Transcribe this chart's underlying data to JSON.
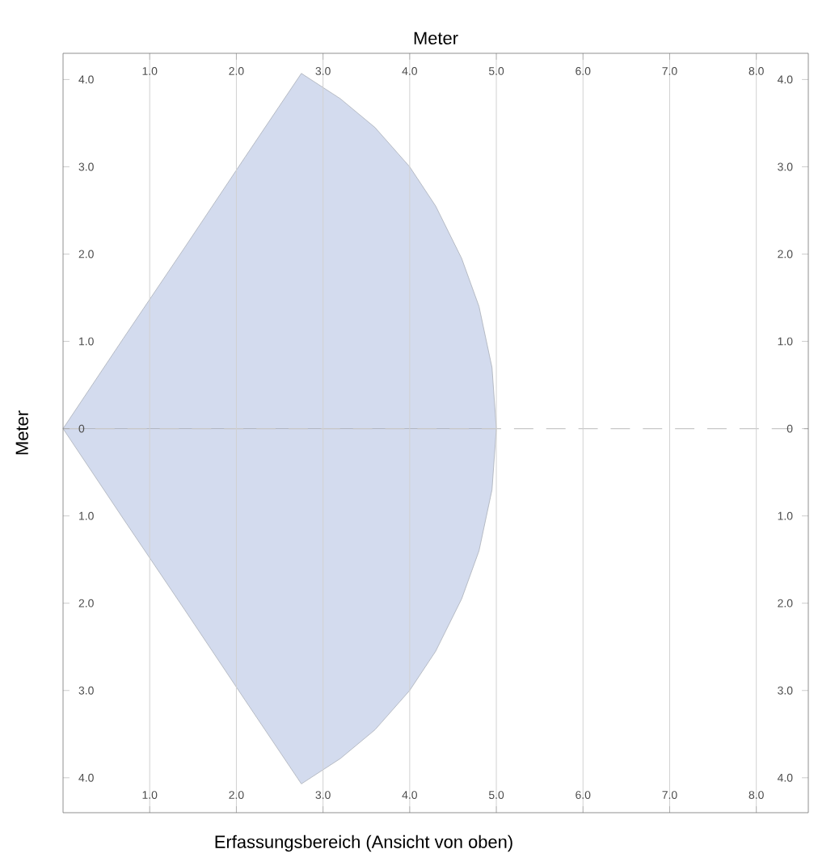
{
  "chart_data": {
    "type": "area",
    "x2label": "Meter",
    "ylabel": "Meter",
    "annotations": [
      "Erfassungsbereich (Ansicht von oben)"
    ],
    "series": [
      {
        "color": "#d3dbee",
        "x": [
          0,
          0.7,
          1.4,
          2.1,
          2.75,
          3.2,
          3.6,
          4.0,
          4.3,
          4.6,
          4.8,
          4.95,
          5.0
        ],
        "values": [
          0,
          1.04,
          2.07,
          3.11,
          4.07,
          3.78,
          3.45,
          3.0,
          2.55,
          1.95,
          1.4,
          0.7,
          0
        ]
      },
      {
        "color": "#d3dbee",
        "x": [
          0,
          0.7,
          1.4,
          2.1,
          2.75,
          3.2,
          3.6,
          4.0,
          4.3,
          4.6,
          4.8,
          4.95,
          5.0
        ],
        "values": [
          0,
          -1.04,
          -2.07,
          -3.11,
          -4.07,
          -3.78,
          -3.45,
          -3.0,
          -2.55,
          -1.95,
          -1.4,
          -0.7,
          0
        ]
      }
    ],
    "xlim": [
      0,
      8.6
    ],
    "x2lim": [
      0,
      8.6
    ],
    "xticks": [
      {
        "value": 1,
        "label": "1.0"
      },
      {
        "value": 2,
        "label": "2.0"
      },
      {
        "value": 3,
        "label": "3.0"
      },
      {
        "value": 4,
        "label": "4.0"
      },
      {
        "value": 5,
        "label": "5.0"
      },
      {
        "value": 6,
        "label": "6.0"
      },
      {
        "value": 7,
        "label": "7.0"
      },
      {
        "value": 8,
        "label": "8.0"
      }
    ],
    "x2ticks": [
      {
        "value": 1,
        "label": "1.0"
      },
      {
        "value": 2,
        "label": "2.0"
      },
      {
        "value": 3,
        "label": "3.0"
      },
      {
        "value": 4,
        "label": "4.0"
      },
      {
        "value": 5,
        "label": "5.0"
      },
      {
        "value": 6,
        "label": "6.0"
      },
      {
        "value": 7,
        "label": "7.0"
      },
      {
        "value": 8,
        "label": "8.0"
      }
    ],
    "ylim": [
      -4.4,
      4.3
    ],
    "y2lim": [
      -4.4,
      4.3
    ],
    "yticks": [
      {
        "value": -4,
        "label": "4.0"
      },
      {
        "value": -3,
        "label": "3.0"
      },
      {
        "value": -2,
        "label": "2.0"
      },
      {
        "value": -1,
        "label": "1.0"
      },
      0,
      {
        "value": 1,
        "label": "1.0"
      },
      {
        "value": 2,
        "label": "2.0"
      },
      {
        "value": 3,
        "label": "3.0"
      },
      {
        "value": 4,
        "label": "4.0"
      }
    ],
    "y2ticks": [
      {
        "value": -4,
        "label": "4.0"
      },
      {
        "value": -3,
        "label": "3.0"
      },
      {
        "value": -2,
        "label": "2.0"
      },
      {
        "value": -1,
        "label": "1.0"
      },
      0,
      {
        "value": 1,
        "label": "1.0"
      },
      {
        "value": 2,
        "label": "2.0"
      },
      {
        "value": 3,
        "label": "3.0"
      },
      {
        "value": 4,
        "label": "4.0"
      }
    ],
    "grid": "x",
    "ref_lines": [
      {
        "axis": "y",
        "value": 0,
        "line_style": "dashed",
        "color": "#c8c8c8"
      }
    ]
  }
}
